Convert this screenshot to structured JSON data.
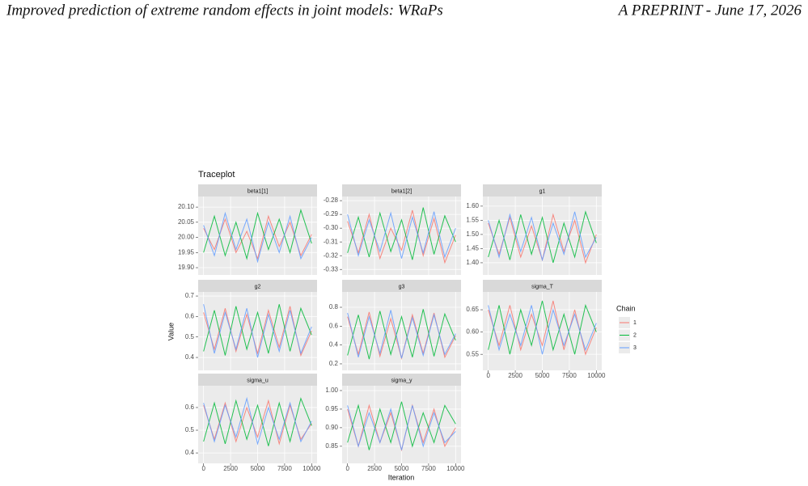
{
  "header": {
    "left": "Improved prediction of extreme random effects in joint models: WRaPs",
    "right": "A PREPRINT - June 17, 2026"
  },
  "chart_data": {
    "type": "line",
    "title": "Traceplot",
    "x_label": "Iteration",
    "y_label": "Value",
    "legend_title": "Chain",
    "x": [
      0,
      1000,
      2000,
      3000,
      4000,
      5000,
      6000,
      7000,
      8000,
      9000,
      10000
    ],
    "xlim": [
      -500,
      10500
    ],
    "xticks": [
      0,
      2500,
      5000,
      7500,
      10000
    ],
    "grid": true,
    "panels": [
      {
        "name": "beta1[1]",
        "ylim": [
          19.876,
          20.135
        ],
        "yticks": [
          {
            "value": 19.9,
            "label": "19.90"
          },
          19.95,
          {
            "value": 20,
            "label": "20.00"
          },
          20.05,
          {
            "value": 20.1,
            "label": "20.10"
          }
        ],
        "series": [
          {
            "name": "1",
            "color": "#F8766D",
            "values": [
              20.03,
              19.96,
              20.06,
              19.95,
              20.02,
              19.93,
              20.07,
              19.97,
              20.05,
              19.94,
              20.01
            ]
          },
          {
            "name": "2",
            "color": "#00BA38",
            "values": [
              19.95,
              20.07,
              19.94,
              20.05,
              19.93,
              20.08,
              19.96,
              20.06,
              19.95,
              20.09,
              19.98
            ]
          },
          {
            "name": "3",
            "color": "#619CFF",
            "values": [
              20.04,
              19.94,
              20.08,
              19.96,
              20.06,
              19.92,
              20.05,
              19.95,
              20.07,
              19.93,
              20.0
            ]
          }
        ]
      },
      {
        "name": "beta1[2]",
        "ylim": [
          -0.334,
          -0.277
        ],
        "yticks": [
          -0.33,
          -0.32,
          -0.31,
          {
            "value": -0.3,
            "label": "-0.30"
          },
          -0.29,
          -0.28
        ],
        "series": [
          {
            "name": "1",
            "color": "#F8766D",
            "values": [
              -0.295,
              -0.318,
              -0.29,
              -0.322,
              -0.3,
              -0.316,
              -0.287,
              -0.32,
              -0.293,
              -0.325,
              -0.305
            ]
          },
          {
            "name": "2",
            "color": "#00BA38",
            "values": [
              -0.318,
              -0.292,
              -0.321,
              -0.289,
              -0.317,
              -0.294,
              -0.323,
              -0.285,
              -0.319,
              -0.291,
              -0.31
            ]
          },
          {
            "name": "3",
            "color": "#619CFF",
            "values": [
              -0.29,
              -0.32,
              -0.294,
              -0.317,
              -0.289,
              -0.322,
              -0.292,
              -0.318,
              -0.288,
              -0.321,
              -0.3
            ]
          }
        ]
      },
      {
        "name": "g1",
        "ylim": [
          1.357,
          1.634
        ],
        "yticks": [
          {
            "value": 1.4,
            "label": "1.40"
          },
          1.45,
          {
            "value": 1.5,
            "label": "1.50"
          },
          1.55,
          {
            "value": 1.6,
            "label": "1.60"
          }
        ],
        "series": [
          {
            "name": "1",
            "color": "#F8766D",
            "values": [
              1.54,
              1.43,
              1.56,
              1.42,
              1.53,
              1.41,
              1.57,
              1.44,
              1.55,
              1.4,
              1.5
            ]
          },
          {
            "name": "2",
            "color": "#00BA38",
            "values": [
              1.42,
              1.55,
              1.41,
              1.57,
              1.43,
              1.56,
              1.4,
              1.54,
              1.42,
              1.58,
              1.47
            ]
          },
          {
            "name": "3",
            "color": "#619CFF",
            "values": [
              1.55,
              1.42,
              1.57,
              1.44,
              1.56,
              1.41,
              1.54,
              1.43,
              1.58,
              1.42,
              1.49
            ]
          }
        ]
      },
      {
        "name": "g2",
        "ylim": [
          0.337,
          0.72
        ],
        "yticks": [
          0.4,
          0.5,
          0.6,
          0.7
        ],
        "series": [
          {
            "name": "1",
            "color": "#F8766D",
            "values": [
              0.62,
              0.44,
              0.64,
              0.43,
              0.61,
              0.42,
              0.63,
              0.45,
              0.65,
              0.41,
              0.53
            ]
          },
          {
            "name": "2",
            "color": "#00BA38",
            "values": [
              0.43,
              0.63,
              0.41,
              0.65,
              0.44,
              0.62,
              0.42,
              0.66,
              0.43,
              0.64,
              0.51
            ]
          },
          {
            "name": "3",
            "color": "#619CFF",
            "values": [
              0.66,
              0.42,
              0.62,
              0.44,
              0.64,
              0.4,
              0.61,
              0.43,
              0.63,
              0.42,
              0.55
            ]
          }
        ]
      },
      {
        "name": "g3",
        "ylim": [
          0.131,
          0.963
        ],
        "yticks": [
          0.2,
          0.4,
          0.6,
          0.8
        ],
        "series": [
          {
            "name": "1",
            "color": "#F8766D",
            "values": [
              0.7,
              0.3,
              0.75,
              0.28,
              0.68,
              0.26,
              0.72,
              0.31,
              0.74,
              0.27,
              0.5
            ]
          },
          {
            "name": "2",
            "color": "#00BA38",
            "values": [
              0.29,
              0.72,
              0.25,
              0.76,
              0.3,
              0.7,
              0.27,
              0.78,
              0.28,
              0.73,
              0.45
            ]
          },
          {
            "name": "3",
            "color": "#619CFF",
            "values": [
              0.74,
              0.27,
              0.7,
              0.31,
              0.77,
              0.26,
              0.69,
              0.29,
              0.72,
              0.3,
              0.52
            ]
          }
        ]
      },
      {
        "name": "sigma_T",
        "ylim": [
          0.514,
          0.69
        ],
        "yticks": [
          0.55,
          {
            "value": 0.6,
            "label": "0.60"
          },
          0.65
        ],
        "series": [
          {
            "name": "1",
            "color": "#F8766D",
            "values": [
              0.65,
              0.57,
              0.66,
              0.56,
              0.64,
              0.57,
              0.67,
              0.56,
              0.65,
              0.55,
              0.61
            ]
          },
          {
            "name": "2",
            "color": "#00BA38",
            "values": [
              0.56,
              0.66,
              0.55,
              0.65,
              0.57,
              0.67,
              0.56,
              0.64,
              0.55,
              0.66,
              0.6
            ]
          },
          {
            "name": "3",
            "color": "#619CFF",
            "values": [
              0.66,
              0.56,
              0.64,
              0.57,
              0.66,
              0.55,
              0.65,
              0.57,
              0.64,
              0.56,
              0.62
            ]
          }
        ]
      },
      {
        "name": "sigma_u",
        "ylim": [
          0.354,
          0.696
        ],
        "yticks": [
          0.4,
          0.5,
          0.6
        ],
        "series": [
          {
            "name": "1",
            "color": "#F8766D",
            "values": [
              0.61,
              0.46,
              0.62,
              0.45,
              0.6,
              0.47,
              0.63,
              0.44,
              0.61,
              0.46,
              0.53
            ]
          },
          {
            "name": "2",
            "color": "#00BA38",
            "values": [
              0.45,
              0.62,
              0.44,
              0.63,
              0.46,
              0.61,
              0.43,
              0.62,
              0.45,
              0.64,
              0.52
            ]
          },
          {
            "name": "3",
            "color": "#619CFF",
            "values": [
              0.62,
              0.45,
              0.61,
              0.47,
              0.64,
              0.44,
              0.6,
              0.46,
              0.62,
              0.45,
              0.54
            ]
          }
        ]
      },
      {
        "name": "sigma_y",
        "ylim": [
          0.804,
          1.013
        ],
        "yticks": [
          0.85,
          {
            "value": 0.9,
            "label": "0.90"
          },
          0.95,
          {
            "value": 1,
            "label": "1.00"
          }
        ],
        "series": [
          {
            "name": "1",
            "color": "#F8766D",
            "values": [
              0.95,
              0.85,
              0.96,
              0.86,
              0.94,
              0.84,
              0.96,
              0.86,
              0.95,
              0.85,
              0.9
            ]
          },
          {
            "name": "2",
            "color": "#00BA38",
            "values": [
              0.86,
              0.96,
              0.84,
              0.95,
              0.86,
              0.97,
              0.85,
              0.94,
              0.86,
              0.96,
              0.91
            ]
          },
          {
            "name": "3",
            "color": "#619CFF",
            "values": [
              0.96,
              0.85,
              0.94,
              0.86,
              0.95,
              0.84,
              0.96,
              0.85,
              0.94,
              0.86,
              0.89
            ]
          }
        ]
      }
    ]
  }
}
